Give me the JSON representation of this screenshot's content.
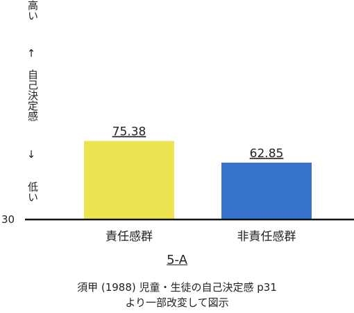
{
  "chart_data": {
    "type": "bar",
    "categories": [
      "責任感群",
      "非責任感群"
    ],
    "values": [
      75.38,
      62.85
    ],
    "value_labels": [
      "75.38",
      "62.85"
    ],
    "colors": [
      "#ECE450",
      "#3673CC"
    ],
    "ylim": [
      30,
      100
    ],
    "y_tick_label": "30",
    "y_axis_text": {
      "top": "高い",
      "arrow_up": "↑",
      "middle": "自己決定感",
      "arrow_down": "↓",
      "bottom": "低い"
    },
    "grid": false,
    "title": "5-A",
    "source": [
      "須甲 (1988) 児童・生徒の自己決定感 p31",
      "より一部改変して図示"
    ]
  }
}
